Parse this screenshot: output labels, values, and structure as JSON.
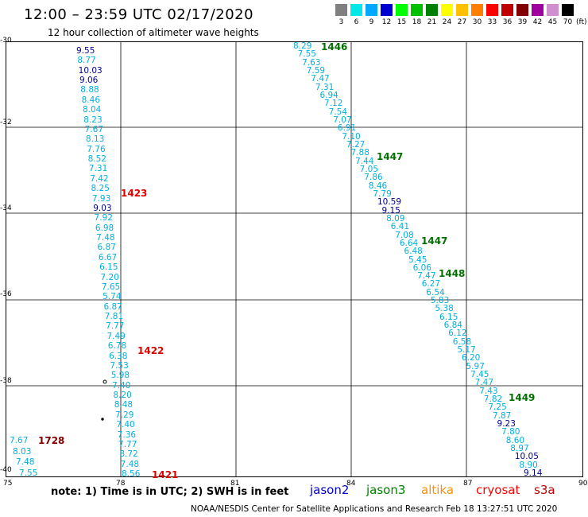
{
  "header": {
    "title": "12:00 – 23:59 UTC 02/17/2020",
    "subtitle": "12 hour collection of altimeter wave heights"
  },
  "legend": {
    "unit": "(ft)",
    "items": [
      {
        "label": "3",
        "color": "#808080"
      },
      {
        "label": "6",
        "color": "#00e8e8"
      },
      {
        "label": "9",
        "color": "#00a8ff"
      },
      {
        "label": "12",
        "color": "#0000d0"
      },
      {
        "label": "15",
        "color": "#00ff00"
      },
      {
        "label": "18",
        "color": "#00c000"
      },
      {
        "label": "21",
        "color": "#008000"
      },
      {
        "label": "24",
        "color": "#ffff00"
      },
      {
        "label": "27",
        "color": "#ffc000"
      },
      {
        "label": "30",
        "color": "#ff8000"
      },
      {
        "label": "33",
        "color": "#ff0000"
      },
      {
        "label": "36",
        "color": "#c00000"
      },
      {
        "label": "39",
        "color": "#800000"
      },
      {
        "label": "42",
        "color": "#a000a0"
      },
      {
        "label": "45",
        "color": "#d090d0"
      },
      {
        "label": "70",
        "color": "#000000"
      }
    ]
  },
  "axes": {
    "lat_labels": [
      "-30",
      "-32",
      "-34",
      "-36",
      "-38",
      "-40"
    ],
    "lon_labels": [
      "75",
      "78",
      "81",
      "84",
      "87",
      "90"
    ]
  },
  "colors": {
    "cyan": "#00b0e0",
    "navy": "#000090",
    "green": "#007000",
    "red": "#e00000",
    "darkred": "#800000"
  },
  "track_left": [
    {
      "v": "9.55",
      "c": "navy"
    },
    {
      "v": "8.77",
      "c": "cyan"
    },
    {
      "v": "10.03",
      "c": "navy"
    },
    {
      "v": "9.06",
      "c": "navy"
    },
    {
      "v": "8.88",
      "c": "cyan"
    },
    {
      "v": "8.46",
      "c": "cyan"
    },
    {
      "v": "8.04",
      "c": "cyan"
    },
    {
      "v": "8.23",
      "c": "cyan"
    },
    {
      "v": "7.67",
      "c": "cyan"
    },
    {
      "v": "8.13",
      "c": "cyan"
    },
    {
      "v": "7.76",
      "c": "cyan"
    },
    {
      "v": "8.52",
      "c": "cyan"
    },
    {
      "v": "7.31",
      "c": "cyan"
    },
    {
      "v": "7.42",
      "c": "cyan"
    },
    {
      "v": "8.25",
      "c": "cyan"
    },
    {
      "v": "7.93",
      "c": "cyan"
    },
    {
      "v": "9.03",
      "c": "navy"
    },
    {
      "v": "7.92",
      "c": "cyan"
    },
    {
      "v": "6.98",
      "c": "cyan"
    },
    {
      "v": "7.48",
      "c": "cyan"
    },
    {
      "v": "6.87",
      "c": "cyan"
    },
    {
      "v": "6.67",
      "c": "cyan"
    },
    {
      "v": "6.15",
      "c": "cyan"
    },
    {
      "v": "7.20",
      "c": "cyan"
    },
    {
      "v": "7.65",
      "c": "cyan"
    },
    {
      "v": "5.74",
      "c": "cyan"
    },
    {
      "v": "6.87",
      "c": "cyan"
    },
    {
      "v": "7.81",
      "c": "cyan"
    },
    {
      "v": "7.77",
      "c": "cyan"
    },
    {
      "v": "7.49",
      "c": "cyan"
    },
    {
      "v": "6.78",
      "c": "cyan"
    },
    {
      "v": "6.38",
      "c": "cyan"
    },
    {
      "v": "7.53",
      "c": "cyan"
    },
    {
      "v": "5.98",
      "c": "cyan"
    },
    {
      "v": "7.40",
      "c": "cyan"
    },
    {
      "v": "8.20",
      "c": "cyan"
    },
    {
      "v": "8.48",
      "c": "cyan"
    },
    {
      "v": "7.29",
      "c": "cyan"
    },
    {
      "v": "7.40",
      "c": "cyan"
    },
    {
      "v": "7.36",
      "c": "cyan"
    },
    {
      "v": "7.77",
      "c": "cyan"
    },
    {
      "v": "8.72",
      "c": "cyan"
    },
    {
      "v": "7.48",
      "c": "cyan"
    },
    {
      "v": "8.56",
      "c": "cyan"
    }
  ],
  "track_right": [
    {
      "v": "8.29",
      "c": "cyan"
    },
    {
      "v": "7.55",
      "c": "cyan"
    },
    {
      "v": "7.63",
      "c": "cyan"
    },
    {
      "v": "7.59",
      "c": "cyan"
    },
    {
      "v": "7.47",
      "c": "cyan"
    },
    {
      "v": "7.31",
      "c": "cyan"
    },
    {
      "v": "6.94",
      "c": "cyan"
    },
    {
      "v": "7.12",
      "c": "cyan"
    },
    {
      "v": "7.54",
      "c": "cyan"
    },
    {
      "v": "7.07",
      "c": "cyan"
    },
    {
      "v": "6.91",
      "c": "cyan"
    },
    {
      "v": "7.10",
      "c": "cyan"
    },
    {
      "v": "7.27",
      "c": "cyan"
    },
    {
      "v": "7.88",
      "c": "cyan"
    },
    {
      "v": "7.44",
      "c": "cyan"
    },
    {
      "v": "7.05",
      "c": "cyan"
    },
    {
      "v": "7.86",
      "c": "cyan"
    },
    {
      "v": "8.46",
      "c": "cyan"
    },
    {
      "v": "7.79",
      "c": "cyan"
    },
    {
      "v": "10.59",
      "c": "navy"
    },
    {
      "v": "9.15",
      "c": "navy"
    },
    {
      "v": "8.09",
      "c": "cyan"
    },
    {
      "v": "6.41",
      "c": "cyan"
    },
    {
      "v": "7.08",
      "c": "cyan"
    },
    {
      "v": "6.64",
      "c": "cyan"
    },
    {
      "v": "6.48",
      "c": "cyan"
    },
    {
      "v": "5.45",
      "c": "cyan"
    },
    {
      "v": "6.06",
      "c": "cyan"
    },
    {
      "v": "7.47",
      "c": "cyan"
    },
    {
      "v": "6.27",
      "c": "cyan"
    },
    {
      "v": "6.54",
      "c": "cyan"
    },
    {
      "v": "5.83",
      "c": "cyan"
    },
    {
      "v": "5.38",
      "c": "cyan"
    },
    {
      "v": "6.15",
      "c": "cyan"
    },
    {
      "v": "6.84",
      "c": "cyan"
    },
    {
      "v": "6.12",
      "c": "cyan"
    },
    {
      "v": "6.58",
      "c": "cyan"
    },
    {
      "v": "5.17",
      "c": "cyan"
    },
    {
      "v": "6.20",
      "c": "cyan"
    },
    {
      "v": "5.97",
      "c": "cyan"
    },
    {
      "v": "7.45",
      "c": "cyan"
    },
    {
      "v": "7.47",
      "c": "cyan"
    },
    {
      "v": "7.43",
      "c": "cyan"
    },
    {
      "v": "7.82",
      "c": "cyan"
    },
    {
      "v": "7.25",
      "c": "cyan"
    },
    {
      "v": "7.87",
      "c": "cyan"
    },
    {
      "v": "9.23",
      "c": "navy"
    },
    {
      "v": "7.80",
      "c": "cyan"
    },
    {
      "v": "8.60",
      "c": "cyan"
    },
    {
      "v": "8.97",
      "c": "cyan"
    },
    {
      "v": "10.05",
      "c": "navy"
    },
    {
      "v": "8.90",
      "c": "cyan"
    },
    {
      "v": "9.14",
      "c": "navy"
    }
  ],
  "track_corner": [
    {
      "v": "7.67",
      "c": "cyan"
    },
    {
      "v": "8.03",
      "c": "cyan"
    },
    {
      "v": "7.48",
      "c": "cyan"
    },
    {
      "v": "7.55",
      "c": "cyan"
    }
  ],
  "time_labels": [
    {
      "t": "1446",
      "c": "green"
    },
    {
      "t": "1447",
      "c": "green"
    },
    {
      "t": "1447",
      "c": "green"
    },
    {
      "t": "1448",
      "c": "green"
    },
    {
      "t": "1449",
      "c": "green"
    },
    {
      "t": "1423",
      "c": "red"
    },
    {
      "t": "1422",
      "c": "red"
    },
    {
      "t": "1421",
      "c": "red"
    },
    {
      "t": "1728",
      "c": "darkred"
    }
  ],
  "note": "note:  1) Time is in UTC;  2) SWH is in feet",
  "satellites": [
    {
      "name": "jason2",
      "color": "#0000d0"
    },
    {
      "name": "jason3",
      "color": "#008000"
    },
    {
      "name": "altika",
      "color": "#ff9000"
    },
    {
      "name": "cryosat",
      "color": "#ff0000"
    },
    {
      "name": "s3a",
      "color": "#c00000"
    }
  ],
  "footer": "NOAA/NESDIS Center for Satellite Applications and Research    Feb 18 13:27:51 UTC 2020"
}
